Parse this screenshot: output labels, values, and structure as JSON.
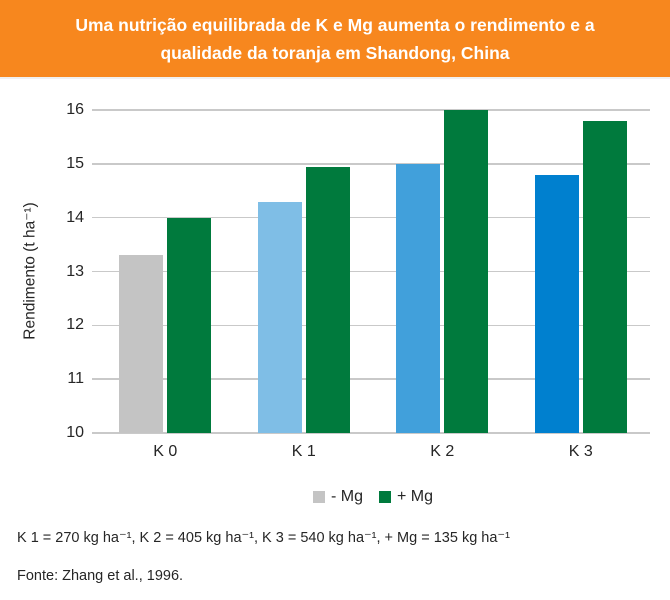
{
  "header": {
    "title": "Uma nutrição equilibrada de K e Mg aumenta o rendimento e a qualidade da toranja em Shandong, China",
    "bg_color": "#F7871E",
    "text_color": "#FFFFFF"
  },
  "chart_data": {
    "type": "bar",
    "categories": [
      "K 0",
      "K 1",
      "K 2",
      "K 3"
    ],
    "series": [
      {
        "name": "- Mg",
        "values": [
          13.3,
          14.3,
          15.0,
          14.8
        ],
        "colors": [
          "#C4C4C4",
          "#7FBEE6",
          "#41A0DB",
          "#0080CF"
        ]
      },
      {
        "name": "+ Mg",
        "values": [
          14.0,
          14.95,
          16.0,
          15.8
        ],
        "colors": [
          "#007A3D",
          "#007A3D",
          "#007A3D",
          "#007A3D"
        ]
      }
    ],
    "ylabel": "Rendimento (t ha⁻¹)",
    "xlabel": "",
    "ylim": [
      10,
      16
    ],
    "yticks": [
      10,
      11,
      12,
      13,
      14,
      15,
      16
    ],
    "grid": "horizontal",
    "legend_position": "bottom",
    "legend": [
      {
        "label": "- Mg",
        "color": "#C4C4C4"
      },
      {
        "label": "+ Mg",
        "color": "#007A3D"
      }
    ]
  },
  "footnotes": {
    "note": "K 1 = 270 kg ha⁻¹, K 2 = 405 kg ha⁻¹, K 3 = 540 kg ha⁻¹, + Mg = 135 kg ha⁻¹",
    "source": "Fonte: Zhang et al., 1996."
  },
  "colors": {
    "banner_orange": "#F7871E",
    "gridline": "#C9C9C9",
    "axis_text": "#262626",
    "bar_gray": "#C4C4C4",
    "bar_blue_light": "#7FBEE6",
    "bar_blue_medium": "#41A0DB",
    "bar_blue_strong": "#0080CF",
    "bar_green": "#007A3D"
  }
}
